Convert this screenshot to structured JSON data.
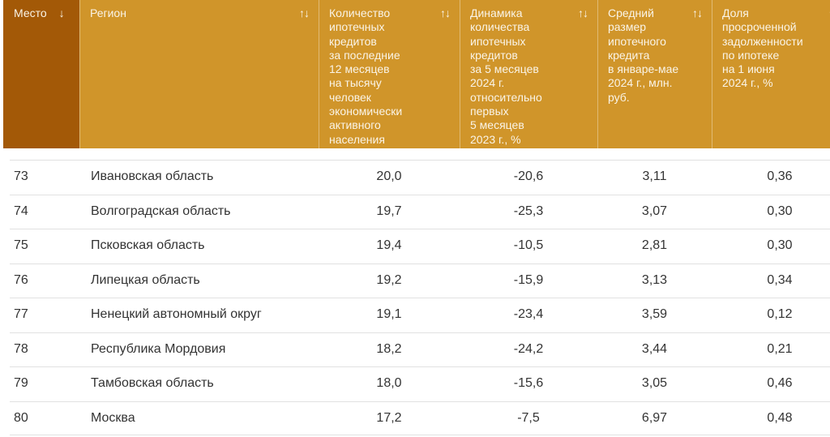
{
  "colors": {
    "header_background": "#d0952a",
    "header_first_column_background": "#a35907",
    "header_text": "#faf4e7",
    "row_divider": "#e1e1e1",
    "body_text": "#333333"
  },
  "icons": {
    "sort_both": "↑↓",
    "sort_desc": "↓"
  },
  "table": {
    "columns": [
      {
        "id": "place",
        "label": "Место"
      },
      {
        "id": "region",
        "label": "Регион"
      },
      {
        "id": "mortgage_count",
        "label": "Количество\nипотечных\nкредитов\nза последние\n12 месяцев\nна тысячу\nчеловек\nэкономически\nактивного\nнаселения"
      },
      {
        "id": "dynamics",
        "label": "Динамика\nколичества\nипотечных\nкредитов\nза 5 месяцев\n2024 г.\nотносительно\nпервых\n5 месяцев\n2023 г., %"
      },
      {
        "id": "avg_size",
        "label": "Средний\nразмер\nипотечного\nкредита\nв январе-мае\n2024 г., млн.\nруб."
      },
      {
        "id": "overdue_share",
        "label": "Доля\nпросроченной\nзадолженности\nпо ипотеке\nна 1 июня\n2024 г., %"
      }
    ],
    "rows": [
      {
        "place": "73",
        "region": "Ивановская область",
        "mortgage_count": "20,0",
        "dynamics": "-20,6",
        "avg_size": "3,11",
        "overdue_share": "0,36"
      },
      {
        "place": "74",
        "region": "Волгоградская область",
        "mortgage_count": "19,7",
        "dynamics": "-25,3",
        "avg_size": "3,07",
        "overdue_share": "0,30"
      },
      {
        "place": "75",
        "region": "Псковская область",
        "mortgage_count": "19,4",
        "dynamics": "-10,5",
        "avg_size": "2,81",
        "overdue_share": "0,30"
      },
      {
        "place": "76",
        "region": "Липецкая область",
        "mortgage_count": "19,2",
        "dynamics": "-15,9",
        "avg_size": "3,13",
        "overdue_share": "0,34"
      },
      {
        "place": "77",
        "region": "Ненецкий автономный округ",
        "mortgage_count": "19,1",
        "dynamics": "-23,4",
        "avg_size": "3,59",
        "overdue_share": "0,12"
      },
      {
        "place": "78",
        "region": "Республика Мордовия",
        "mortgage_count": "18,2",
        "dynamics": "-24,2",
        "avg_size": "3,44",
        "overdue_share": "0,21"
      },
      {
        "place": "79",
        "region": "Тамбовская область",
        "mortgage_count": "18,0",
        "dynamics": "-15,6",
        "avg_size": "3,05",
        "overdue_share": "0,46"
      },
      {
        "place": "80",
        "region": "Москва",
        "mortgage_count": "17,2",
        "dynamics": "-7,5",
        "avg_size": "6,97",
        "overdue_share": "0,48"
      }
    ]
  }
}
